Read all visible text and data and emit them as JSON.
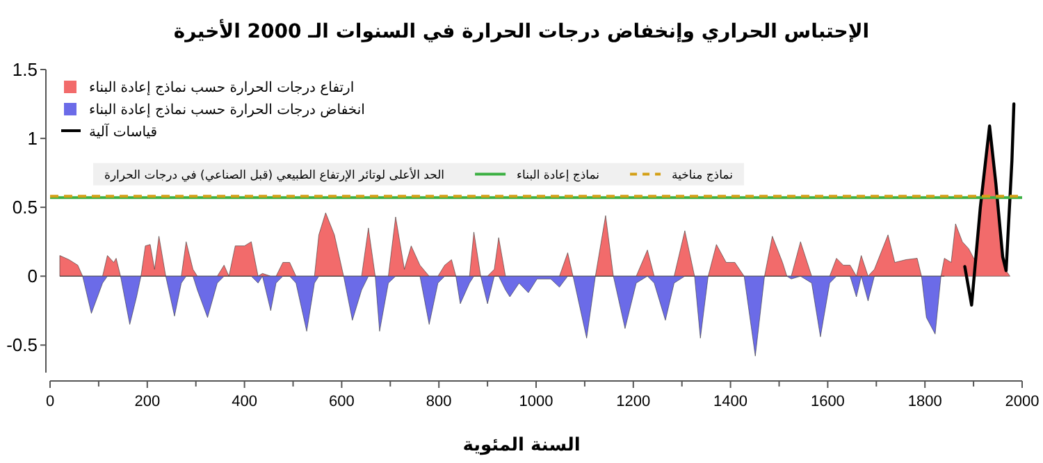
{
  "chart_data": {
    "type": "area",
    "title": "الإحتباس الحراري وإنخفاض درجات الحرارة في السنوات الـ 2000 الأخيرة",
    "xlabel": "السنة المئوية",
    "xlim": [
      0,
      2000
    ],
    "xticks": [
      0,
      200,
      400,
      600,
      800,
      1000,
      1200,
      1400,
      1600,
      1800,
      2000
    ],
    "ylim": [
      -0.7,
      1.5
    ],
    "yticks": [
      -0.5,
      0,
      0.5,
      1,
      1.5
    ],
    "legend": "top left",
    "annotations": [
      "الحد الأعلى لوتائر الإرتفاع الطبيعي (قبل الصناعي) في درجات الحرارة"
    ],
    "ref_lines": [
      {
        "axis": "y",
        "value": 0.57,
        "label": "نماذج إعادة البناء",
        "color": "#3cb043"
      },
      {
        "axis": "y",
        "value": 0.58,
        "label": "نماذج مناخية",
        "color": "#d4a017",
        "line_style": "dashed"
      }
    ],
    "series": [
      {
        "name": "ارتفاع درجات الحرارة حسب نماذج إعادة البناء",
        "color": "#f26b6b",
        "x": [
          20,
          39,
          57,
          67,
          85,
          108,
          118,
          131,
          136,
          145,
          164,
          178,
          187,
          196,
          206,
          215,
          224,
          238,
          256,
          270,
          280,
          294,
          303,
          324,
          344,
          358,
          368,
          381,
          400,
          414,
          428,
          437,
          454,
          465,
          479,
          493,
          506,
          528,
          544,
          553,
          567,
          585,
          604,
          622,
          641,
          655,
          669,
          678,
          696,
          711,
          729,
          743,
          761,
          780,
          798,
          812,
          826,
          835,
          844,
          863,
          872,
          886,
          900,
          914,
          923,
          937,
          946,
          965,
          984,
          1002,
          1030,
          1048,
          1065,
          1076,
          1104,
          1122,
          1143,
          1159,
          1183,
          1206,
          1229,
          1243,
          1266,
          1284,
          1306,
          1326,
          1338,
          1354,
          1371,
          1391,
          1409,
          1428,
          1451,
          1470,
          1486,
          1507,
          1516,
          1525,
          1544,
          1567,
          1585,
          1604,
          1618,
          1632,
          1646,
          1659,
          1669,
          1683,
          1696,
          1724,
          1738,
          1761,
          1784,
          1793,
          1803,
          1821,
          1833,
          1840,
          1854,
          1863,
          1877,
          1890,
          1905,
          1914,
          1933,
          1946,
          1960,
          1967,
          1975
        ],
        "values": [
          0.15,
          0.12,
          0.08,
          0,
          0,
          0,
          0.15,
          0.1,
          0.13,
          0,
          0,
          0,
          0,
          0.22,
          0.23,
          0.05,
          0.29,
          0,
          0,
          0,
          0.25,
          0.05,
          0,
          0,
          0,
          0.08,
          0,
          0.22,
          0.22,
          0.25,
          0,
          0.02,
          0,
          0,
          0.1,
          0.1,
          0,
          0,
          0,
          0.3,
          0.46,
          0.3,
          0,
          0,
          0,
          0.35,
          0,
          0,
          0,
          0.43,
          0.05,
          0.22,
          0.08,
          0,
          0,
          0.08,
          0.12,
          0,
          0,
          0,
          0.32,
          0,
          0,
          0.05,
          0.28,
          0,
          0,
          0,
          0,
          0,
          0,
          0,
          0.17,
          0,
          0,
          0,
          0.44,
          0,
          0,
          0,
          0.19,
          0,
          0,
          0,
          0.33,
          0,
          0,
          0,
          0.23,
          0.1,
          0.1,
          0,
          0,
          0,
          0.29,
          0.1,
          0,
          0,
          0.25,
          0,
          0,
          0,
          0.13,
          0.08,
          0.08,
          0,
          0.15,
          0,
          0.05,
          0.3,
          0.1,
          0.12,
          0.13,
          0,
          0,
          0,
          0,
          0.13,
          0.1,
          0.38,
          0.25,
          0.2,
          0.1,
          0.5,
          1.09,
          0.67,
          0.14,
          0.04,
          0
        ]
      },
      {
        "name": "انخفاض درجات الحرارة حسب نماذج إعادة البناء",
        "color": "#6b6be8",
        "x": [
          20,
          39,
          57,
          67,
          85,
          108,
          118,
          131,
          136,
          145,
          164,
          178,
          187,
          196,
          206,
          215,
          224,
          238,
          256,
          270,
          280,
          294,
          303,
          324,
          344,
          358,
          368,
          381,
          400,
          414,
          428,
          437,
          454,
          465,
          479,
          493,
          506,
          528,
          544,
          553,
          567,
          585,
          604,
          622,
          641,
          655,
          669,
          678,
          696,
          711,
          729,
          743,
          761,
          780,
          798,
          812,
          826,
          835,
          844,
          863,
          872,
          886,
          900,
          914,
          923,
          937,
          946,
          965,
          984,
          1002,
          1030,
          1048,
          1065,
          1076,
          1104,
          1122,
          1143,
          1159,
          1183,
          1206,
          1229,
          1243,
          1266,
          1284,
          1306,
          1326,
          1338,
          1354,
          1371,
          1391,
          1409,
          1428,
          1451,
          1470,
          1486,
          1507,
          1516,
          1525,
          1544,
          1567,
          1585,
          1604,
          1618,
          1632,
          1646,
          1659,
          1669,
          1683,
          1696,
          1724,
          1738,
          1761,
          1784,
          1793,
          1803,
          1821,
          1833,
          1840
        ],
        "values": [
          0,
          0,
          0,
          0,
          -0.27,
          -0.05,
          0,
          0,
          0,
          0,
          -0.35,
          -0.15,
          0,
          0,
          0,
          0,
          0,
          0,
          -0.29,
          -0.05,
          0,
          0,
          -0.1,
          -0.3,
          -0.05,
          0,
          0,
          0,
          0,
          0,
          -0.05,
          0,
          -0.25,
          -0.05,
          0,
          0,
          -0.05,
          -0.4,
          -0.05,
          0,
          0,
          0,
          0,
          -0.32,
          -0.1,
          0,
          0,
          -0.4,
          -0.05,
          0,
          0,
          0,
          0,
          -0.35,
          -0.05,
          0,
          0,
          0,
          -0.2,
          -0.05,
          0,
          0,
          -0.2,
          0,
          0,
          -0.1,
          -0.15,
          -0.05,
          -0.12,
          -0.02,
          -0.02,
          -0.08,
          0,
          0,
          -0.45,
          0,
          0,
          0,
          -0.38,
          -0.05,
          0,
          -0.05,
          -0.32,
          -0.05,
          0,
          0,
          -0.45,
          0,
          0,
          0,
          0,
          0,
          -0.58,
          0,
          0,
          0,
          0,
          -0.02,
          0,
          -0.05,
          -0.44,
          -0.05,
          0,
          0,
          0,
          -0.15,
          0,
          -0.18,
          0,
          0,
          0,
          0,
          0,
          0,
          -0.3,
          -0.42,
          0,
          0
        ]
      },
      {
        "name": "قياسات آلية",
        "type": "line",
        "color": "#000000",
        "x": [
          1882,
          1896,
          1914,
          1933,
          1946,
          1960,
          1967,
          1979,
          1983
        ],
        "values": [
          0.07,
          -0.21,
          0.5,
          1.09,
          0.67,
          0.14,
          0.04,
          0.84,
          1.25
        ]
      }
    ]
  }
}
